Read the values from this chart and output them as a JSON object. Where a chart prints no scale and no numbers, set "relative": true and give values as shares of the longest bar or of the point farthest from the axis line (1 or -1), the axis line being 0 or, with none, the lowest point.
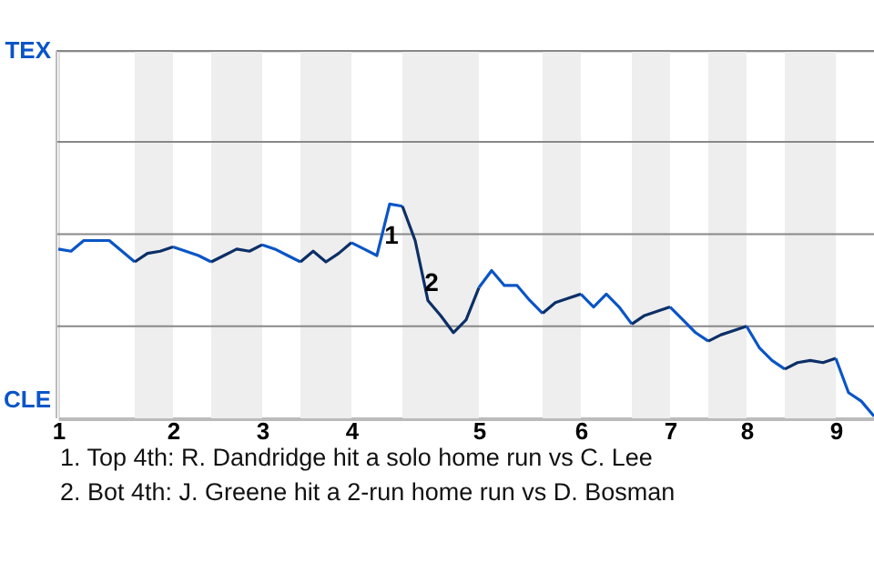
{
  "chart_data": {
    "type": "line",
    "relative": true,
    "ref_lines": [
      {
        "axis": "y",
        "value": 0.43,
        "color": "#888888"
      },
      {
        "axis": "y",
        "value": 0.86,
        "color": "#888888"
      },
      {
        "axis": "y",
        "value": 1.29,
        "color": "#888888"
      }
    ],
    "line_style": "solid",
    "marker": "none",
    "categories": [
      "1",
      null,
      null,
      null,
      null,
      null,
      null,
      null,
      null,
      "2",
      null,
      null,
      null,
      null,
      null,
      null,
      "3",
      null,
      null,
      null,
      null,
      null,
      null,
      "4",
      null,
      null,
      null,
      null,
      null,
      null,
      null,
      null,
      null,
      "5",
      null,
      null,
      null,
      null,
      null,
      null,
      null,
      "6",
      null,
      null,
      null,
      null,
      null,
      null,
      "7",
      null,
      null,
      null,
      null,
      null,
      "8",
      null,
      null,
      null,
      null,
      null,
      null,
      "9",
      null,
      null,
      null
    ],
    "series": [
      {
        "color": "#0a55c8",
        "values": [
          0.79,
          0.78,
          0.83,
          0.83,
          0.83,
          0.78,
          0.73,
          null,
          null,
          null,
          null,
          null,
          null,
          null,
          null,
          null,
          null,
          null,
          null,
          null,
          null,
          null,
          null,
          null,
          null,
          null,
          null,
          null,
          null,
          null,
          null,
          null,
          null,
          null,
          null,
          null,
          null,
          null,
          null,
          null,
          null,
          null,
          null,
          null,
          null,
          null,
          null,
          null,
          null,
          null,
          null,
          null,
          null,
          null,
          null,
          null,
          null,
          null,
          null,
          null,
          null,
          null,
          null,
          null,
          null
        ]
      },
      {
        "color": "#0c2f66",
        "values": [
          null,
          null,
          null,
          null,
          null,
          null,
          0.73,
          0.77,
          0.78,
          0.8,
          null,
          null,
          null,
          null,
          null,
          null,
          null,
          null,
          null,
          null,
          null,
          null,
          null,
          null,
          null,
          null,
          null,
          null,
          null,
          null,
          null,
          null,
          null,
          null,
          null,
          null,
          null,
          null,
          null,
          null,
          null,
          null,
          null,
          null,
          null,
          null,
          null,
          null,
          null,
          null,
          null,
          null,
          null,
          null,
          null,
          null,
          null,
          null,
          null,
          null,
          null,
          null,
          null,
          null,
          null
        ]
      },
      {
        "color": "#0a55c8",
        "values": [
          null,
          null,
          null,
          null,
          null,
          null,
          null,
          null,
          null,
          0.8,
          0.78,
          0.76,
          0.73,
          null,
          null,
          null,
          null,
          null,
          null,
          null,
          null,
          null,
          null,
          null,
          null,
          null,
          null,
          null,
          null,
          null,
          null,
          null,
          null,
          null,
          null,
          null,
          null,
          null,
          null,
          null,
          null,
          null,
          null,
          null,
          null,
          null,
          null,
          null,
          null,
          null,
          null,
          null,
          null,
          null,
          null,
          null,
          null,
          null,
          null,
          null,
          null,
          null,
          null,
          null,
          null
        ]
      },
      {
        "color": "#0c2f66",
        "values": [
          null,
          null,
          null,
          null,
          null,
          null,
          null,
          null,
          null,
          null,
          null,
          null,
          0.73,
          0.76,
          0.79,
          0.78,
          0.81,
          null,
          null,
          null,
          null,
          null,
          null,
          null,
          null,
          null,
          null,
          null,
          null,
          null,
          null,
          null,
          null,
          null,
          null,
          null,
          null,
          null,
          null,
          null,
          null,
          null,
          null,
          null,
          null,
          null,
          null,
          null,
          null,
          null,
          null,
          null,
          null,
          null,
          null,
          null,
          null,
          null,
          null,
          null,
          null,
          null,
          null,
          null,
          null
        ]
      },
      {
        "color": "#0a55c8",
        "values": [
          null,
          null,
          null,
          null,
          null,
          null,
          null,
          null,
          null,
          null,
          null,
          null,
          null,
          null,
          null,
          null,
          0.81,
          0.79,
          0.76,
          0.73,
          null,
          null,
          null,
          null,
          null,
          null,
          null,
          null,
          null,
          null,
          null,
          null,
          null,
          null,
          null,
          null,
          null,
          null,
          null,
          null,
          null,
          null,
          null,
          null,
          null,
          null,
          null,
          null,
          null,
          null,
          null,
          null,
          null,
          null,
          null,
          null,
          null,
          null,
          null,
          null,
          null,
          null,
          null,
          null,
          null
        ]
      },
      {
        "color": "#0c2f66",
        "values": [
          null,
          null,
          null,
          null,
          null,
          null,
          null,
          null,
          null,
          null,
          null,
          null,
          null,
          null,
          null,
          null,
          null,
          null,
          null,
          0.73,
          0.78,
          0.73,
          0.77,
          0.82,
          null,
          null,
          null,
          null,
          null,
          null,
          null,
          null,
          null,
          null,
          null,
          null,
          null,
          null,
          null,
          null,
          null,
          null,
          null,
          null,
          null,
          null,
          null,
          null,
          null,
          null,
          null,
          null,
          null,
          null,
          null,
          null,
          null,
          null,
          null,
          null,
          null,
          null,
          null,
          null,
          null
        ]
      },
      {
        "color": "#0a55c8",
        "values": [
          null,
          null,
          null,
          null,
          null,
          null,
          null,
          null,
          null,
          null,
          null,
          null,
          null,
          null,
          null,
          null,
          null,
          null,
          null,
          null,
          null,
          null,
          null,
          0.82,
          0.79,
          0.76,
          1.0,
          0.99,
          null,
          null,
          null,
          null,
          null,
          null,
          null,
          null,
          null,
          null,
          null,
          null,
          null,
          null,
          null,
          null,
          null,
          null,
          null,
          null,
          null,
          null,
          null,
          null,
          null,
          null,
          null,
          null,
          null,
          null,
          null,
          null,
          null,
          null,
          null,
          null,
          null
        ]
      },
      {
        "color": "#0c2f66",
        "values": [
          null,
          null,
          null,
          null,
          null,
          null,
          null,
          null,
          null,
          null,
          null,
          null,
          null,
          null,
          null,
          null,
          null,
          null,
          null,
          null,
          null,
          null,
          null,
          null,
          null,
          null,
          null,
          0.99,
          0.83,
          0.55,
          0.48,
          0.4,
          0.46,
          0.61,
          null,
          null,
          null,
          null,
          null,
          null,
          null,
          null,
          null,
          null,
          null,
          null,
          null,
          null,
          null,
          null,
          null,
          null,
          null,
          null,
          null,
          null,
          null,
          null,
          null,
          null,
          null,
          null,
          null,
          null,
          null
        ]
      },
      {
        "color": "#0a55c8",
        "values": [
          null,
          null,
          null,
          null,
          null,
          null,
          null,
          null,
          null,
          null,
          null,
          null,
          null,
          null,
          null,
          null,
          null,
          null,
          null,
          null,
          null,
          null,
          null,
          null,
          null,
          null,
          null,
          null,
          null,
          null,
          null,
          null,
          null,
          0.61,
          0.69,
          0.62,
          0.62,
          0.55,
          0.49,
          null,
          null,
          null,
          null,
          null,
          null,
          null,
          null,
          null,
          null,
          null,
          null,
          null,
          null,
          null,
          null,
          null,
          null,
          null,
          null,
          null,
          null,
          null,
          null,
          null,
          null
        ]
      },
      {
        "color": "#0c2f66",
        "values": [
          null,
          null,
          null,
          null,
          null,
          null,
          null,
          null,
          null,
          null,
          null,
          null,
          null,
          null,
          null,
          null,
          null,
          null,
          null,
          null,
          null,
          null,
          null,
          null,
          null,
          null,
          null,
          null,
          null,
          null,
          null,
          null,
          null,
          null,
          null,
          null,
          null,
          null,
          0.49,
          0.54,
          0.56,
          0.58,
          null,
          null,
          null,
          null,
          null,
          null,
          null,
          null,
          null,
          null,
          null,
          null,
          null,
          null,
          null,
          null,
          null,
          null,
          null,
          null,
          null,
          null,
          null
        ]
      },
      {
        "color": "#0a55c8",
        "values": [
          null,
          null,
          null,
          null,
          null,
          null,
          null,
          null,
          null,
          null,
          null,
          null,
          null,
          null,
          null,
          null,
          null,
          null,
          null,
          null,
          null,
          null,
          null,
          null,
          null,
          null,
          null,
          null,
          null,
          null,
          null,
          null,
          null,
          null,
          null,
          null,
          null,
          null,
          null,
          null,
          null,
          0.58,
          0.52,
          0.58,
          0.52,
          0.44,
          null,
          null,
          null,
          null,
          null,
          null,
          null,
          null,
          null,
          null,
          null,
          null,
          null,
          null,
          null,
          null,
          null,
          null,
          null
        ]
      },
      {
        "color": "#0c2f66",
        "values": [
          null,
          null,
          null,
          null,
          null,
          null,
          null,
          null,
          null,
          null,
          null,
          null,
          null,
          null,
          null,
          null,
          null,
          null,
          null,
          null,
          null,
          null,
          null,
          null,
          null,
          null,
          null,
          null,
          null,
          null,
          null,
          null,
          null,
          null,
          null,
          null,
          null,
          null,
          null,
          null,
          null,
          null,
          null,
          null,
          null,
          0.44,
          0.48,
          0.5,
          0.52,
          null,
          null,
          null,
          null,
          null,
          null,
          null,
          null,
          null,
          null,
          null,
          null,
          null,
          null,
          null,
          null
        ]
      },
      {
        "color": "#0a55c8",
        "values": [
          null,
          null,
          null,
          null,
          null,
          null,
          null,
          null,
          null,
          null,
          null,
          null,
          null,
          null,
          null,
          null,
          null,
          null,
          null,
          null,
          null,
          null,
          null,
          null,
          null,
          null,
          null,
          null,
          null,
          null,
          null,
          null,
          null,
          null,
          null,
          null,
          null,
          null,
          null,
          null,
          null,
          null,
          null,
          null,
          null,
          null,
          null,
          null,
          0.52,
          0.46,
          0.4,
          0.36,
          null,
          null,
          null,
          null,
          null,
          null,
          null,
          null,
          null,
          null,
          null,
          null,
          null
        ]
      },
      {
        "color": "#0c2f66",
        "values": [
          null,
          null,
          null,
          null,
          null,
          null,
          null,
          null,
          null,
          null,
          null,
          null,
          null,
          null,
          null,
          null,
          null,
          null,
          null,
          null,
          null,
          null,
          null,
          null,
          null,
          null,
          null,
          null,
          null,
          null,
          null,
          null,
          null,
          null,
          null,
          null,
          null,
          null,
          null,
          null,
          null,
          null,
          null,
          null,
          null,
          null,
          null,
          null,
          null,
          null,
          null,
          0.36,
          0.39,
          0.41,
          0.43,
          null,
          null,
          null,
          null,
          null,
          null,
          null,
          null,
          null,
          null
        ]
      },
      {
        "color": "#0a55c8",
        "values": [
          null,
          null,
          null,
          null,
          null,
          null,
          null,
          null,
          null,
          null,
          null,
          null,
          null,
          null,
          null,
          null,
          null,
          null,
          null,
          null,
          null,
          null,
          null,
          null,
          null,
          null,
          null,
          null,
          null,
          null,
          null,
          null,
          null,
          null,
          null,
          null,
          null,
          null,
          null,
          null,
          null,
          null,
          null,
          null,
          null,
          null,
          null,
          null,
          null,
          null,
          null,
          null,
          null,
          null,
          0.43,
          0.33,
          0.27,
          0.23,
          null,
          null,
          null,
          null,
          null,
          null,
          null
        ]
      },
      {
        "color": "#0c2f66",
        "values": [
          null,
          null,
          null,
          null,
          null,
          null,
          null,
          null,
          null,
          null,
          null,
          null,
          null,
          null,
          null,
          null,
          null,
          null,
          null,
          null,
          null,
          null,
          null,
          null,
          null,
          null,
          null,
          null,
          null,
          null,
          null,
          null,
          null,
          null,
          null,
          null,
          null,
          null,
          null,
          null,
          null,
          null,
          null,
          null,
          null,
          null,
          null,
          null,
          null,
          null,
          null,
          null,
          null,
          null,
          null,
          null,
          null,
          0.23,
          0.26,
          0.27,
          0.26,
          0.28,
          null,
          null,
          null
        ]
      },
      {
        "color": "#0a55c8",
        "values": [
          null,
          null,
          null,
          null,
          null,
          null,
          null,
          null,
          null,
          null,
          null,
          null,
          null,
          null,
          null,
          null,
          null,
          null,
          null,
          null,
          null,
          null,
          null,
          null,
          null,
          null,
          null,
          null,
          null,
          null,
          null,
          null,
          null,
          null,
          null,
          null,
          null,
          null,
          null,
          null,
          null,
          null,
          null,
          null,
          null,
          null,
          null,
          null,
          null,
          null,
          null,
          null,
          null,
          null,
          null,
          null,
          null,
          null,
          null,
          null,
          null,
          0.28,
          0.12,
          0.08,
          0.01
        ]
      }
    ],
    "annotations": [
      "1",
      "2",
      "TEX",
      "CLE",
      "1. Top 4th: R. Dandridge hit a solo home run vs C. Lee",
      "2. Bot 4th: J. Greene hit a 2-run home run vs D. Bosman"
    ]
  }
}
